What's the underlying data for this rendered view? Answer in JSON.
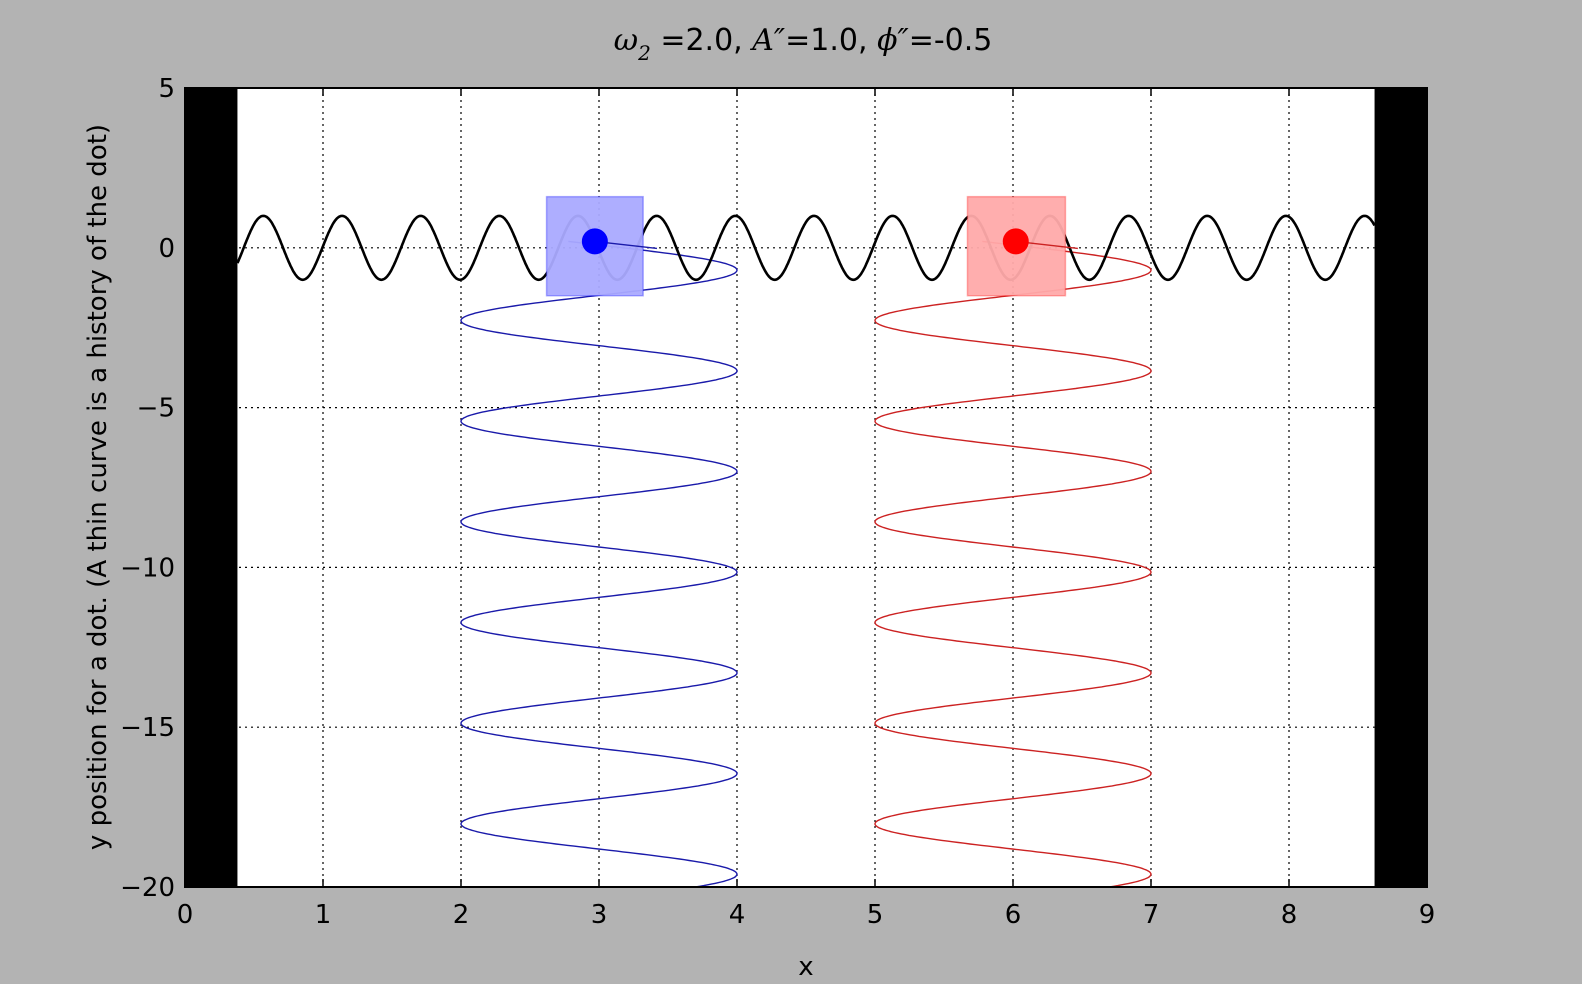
{
  "chart_data": {
    "type": "line",
    "title": {
      "omega_symbol": "ω",
      "omega_sub": "2",
      "omega_value": " =2.0, ",
      "a_symbol": "A″",
      "a_value": "=1.0, ",
      "phi_symbol": "ϕ″",
      "phi_value": "=-0.5"
    },
    "xlabel": "x",
    "ylabel": "y position for a dot. (A thin curve is a history of the dot)",
    "xlim": [
      0,
      9
    ],
    "ylim": [
      -20,
      5
    ],
    "xticks": [
      0,
      1,
      2,
      3,
      4,
      5,
      6,
      7,
      8,
      9
    ],
    "yticks": [
      5,
      0,
      -5,
      -10,
      -15,
      -20
    ],
    "ytick_labels": [
      "5",
      "0",
      "−5",
      "−10",
      "−15",
      "−20"
    ],
    "grid": true,
    "walls": [
      {
        "x_from": 0,
        "x_to": 0.38
      },
      {
        "x_from": 8.62,
        "x_to": 9
      }
    ],
    "wave": {
      "color": "#000000",
      "x_from": 0.38,
      "x_to": 8.62,
      "amplitude": 1.0,
      "wavelength": 0.57,
      "phase": -0.5
    },
    "dots": [
      {
        "name": "blue dot",
        "x": 2.97,
        "y": 0.2,
        "box_x": [
          2.62,
          3.32
        ],
        "box_y": [
          -1.5,
          1.6
        ],
        "color": "#0000ff",
        "box_color": "#aaaaff"
      },
      {
        "name": "red dot",
        "x": 6.02,
        "y": 0.2,
        "box_x": [
          5.67,
          6.38
        ],
        "box_y": [
          -1.5,
          1.6
        ],
        "color": "#ff0000",
        "box_color": "#ffaaaa"
      }
    ],
    "histories": [
      {
        "name": "blue history",
        "color": "#1a1aaa",
        "center": 3.0,
        "amplitude": 1.0,
        "y_from": 0.2,
        "y_to": -20,
        "period": 3.15,
        "y_first_peak": -0.7
      },
      {
        "name": "red history",
        "color": "#cc2222",
        "center": 6.0,
        "amplitude": 1.0,
        "y_from": 0.2,
        "y_to": -20,
        "period": 3.15,
        "y_first_peak": -0.7
      }
    ]
  }
}
